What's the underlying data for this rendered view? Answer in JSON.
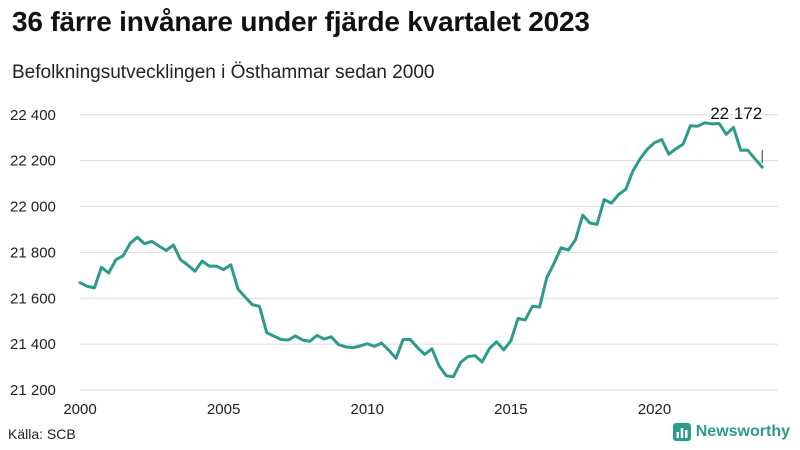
{
  "header": {
    "title": "36 färre invånare under fjärde kvartalet 2023",
    "subtitle": "Befolkningsutvecklingen i Östhammar sedan 2000"
  },
  "footer": {
    "source": "Källa: SCB",
    "brand": "Newsworthy",
    "brand_color": "#2e9a8a"
  },
  "chart_data": {
    "type": "line",
    "title": "36 färre invånare under fjärde kvartalet 2023",
    "subtitle": "Befolkningsutvecklingen i Östhammar sedan 2000",
    "xlabel": "",
    "ylabel": "",
    "xlim": [
      2000,
      2024.3
    ],
    "ylim": [
      21200,
      22460
    ],
    "x_ticks": [
      {
        "value": 2000,
        "label": "2000"
      },
      {
        "value": 2005,
        "label": "2005"
      },
      {
        "value": 2010,
        "label": "2010"
      },
      {
        "value": 2015,
        "label": "2015"
      },
      {
        "value": 2020,
        "label": "2020"
      }
    ],
    "y_ticks": [
      {
        "value": 21200,
        "label": "21 200"
      },
      {
        "value": 21400,
        "label": "21 400"
      },
      {
        "value": 21600,
        "label": "21 600"
      },
      {
        "value": 21800,
        "label": "21 800"
      },
      {
        "value": 22000,
        "label": "22 000"
      },
      {
        "value": 22200,
        "label": "22 200"
      },
      {
        "value": 22400,
        "label": "22 400"
      }
    ],
    "grid": {
      "horizontal": true,
      "vertical": false
    },
    "line_color": "#2e9a8a",
    "annotation": {
      "x": 2023.75,
      "y": 22172,
      "label": "22 172"
    },
    "series": [
      {
        "x": [
          2000.0,
          2000.25,
          2000.5,
          2000.75,
          2001.0,
          2001.25,
          2001.5,
          2001.75,
          2002.0,
          2002.25,
          2002.5,
          2002.75,
          2003.0,
          2003.25,
          2003.5,
          2003.75,
          2004.0,
          2004.25,
          2004.5,
          2004.75,
          2005.0,
          2005.25,
          2005.5,
          2005.75,
          2006.0,
          2006.25,
          2006.5,
          2006.75,
          2007.0,
          2007.25,
          2007.5,
          2007.75,
          2008.0,
          2008.25,
          2008.5,
          2008.75,
          2009.0,
          2009.25,
          2009.5,
          2009.75,
          2010.0,
          2010.25,
          2010.5,
          2010.75,
          2011.0,
          2011.25,
          2011.5,
          2011.75,
          2012.0,
          2012.25,
          2012.5,
          2012.75,
          2013.0,
          2013.25,
          2013.5,
          2013.75,
          2014.0,
          2014.25,
          2014.5,
          2014.75,
          2015.0,
          2015.25,
          2015.5,
          2015.75,
          2016.0,
          2016.25,
          2016.5,
          2016.75,
          2017.0,
          2017.25,
          2017.5,
          2017.75,
          2018.0,
          2018.25,
          2018.5,
          2018.75,
          2019.0,
          2019.25,
          2019.5,
          2019.75,
          2020.0,
          2020.25,
          2020.5,
          2020.75,
          2021.0,
          2021.25,
          2021.5,
          2021.75,
          2022.0,
          2022.25,
          2022.5,
          2022.75,
          2023.0,
          2023.25,
          2023.5,
          2023.75
        ],
        "values": [
          21668,
          21652,
          21645,
          21735,
          21710,
          21768,
          21785,
          21840,
          21866,
          21838,
          21848,
          21828,
          21808,
          21832,
          21768,
          21745,
          21718,
          21762,
          21740,
          21740,
          21725,
          21746,
          21640,
          21605,
          21572,
          21565,
          21450,
          21435,
          21420,
          21418,
          21436,
          21418,
          21412,
          21438,
          21422,
          21432,
          21398,
          21388,
          21385,
          21392,
          21402,
          21390,
          21405,
          21373,
          21338,
          21420,
          21420,
          21385,
          21355,
          21380,
          21305,
          21262,
          21258,
          21320,
          21345,
          21350,
          21322,
          21380,
          21410,
          21375,
          21415,
          21512,
          21505,
          21565,
          21562,
          21690,
          21752,
          21820,
          21810,
          21855,
          21962,
          21928,
          21922,
          22030,
          22015,
          22052,
          22075,
          22155,
          22208,
          22250,
          22278,
          22292,
          22228,
          22252,
          22272,
          22352,
          22350,
          22365,
          22360,
          22362,
          22315,
          22345,
          22245,
          22245,
          22208,
          22172
        ]
      }
    ]
  }
}
